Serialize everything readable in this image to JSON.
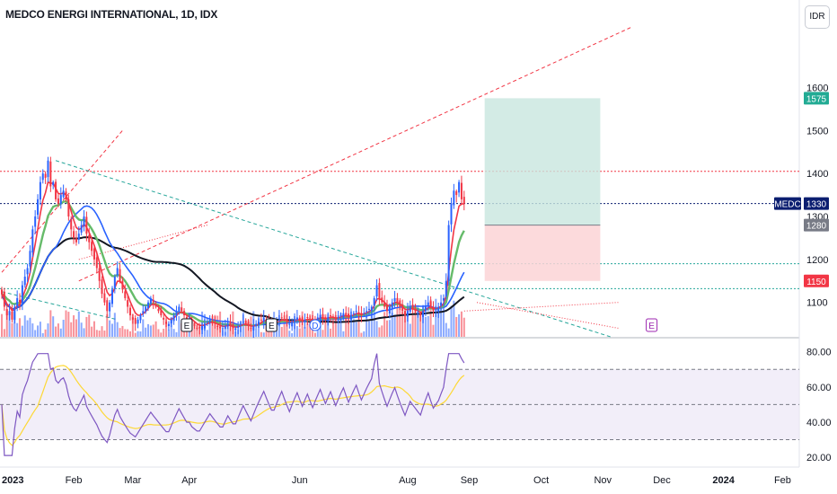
{
  "header": {
    "title": "MEDCO ENERGI INTERNATIONAL, 1D, IDX",
    "currency_button": "IDR"
  },
  "colors": {
    "up": "#2962ff",
    "down": "#f23645",
    "ema_fast": "#f23645",
    "ema_mid": "#26a69a",
    "ma_slow": "#2962ff",
    "ma_long": "#131722",
    "rsi_line": "#7e57c2",
    "rsi_ma": "#fdd835",
    "rsi_band": "#ede7f6",
    "target_zone": "#c8e6df",
    "stop_zone": "#fbd4d6",
    "tag_green": "#22ab94",
    "tag_navy": "#0b1e70",
    "tag_gray": "#787b86",
    "tag_red": "#f23645"
  },
  "chart_data": [
    {
      "type": "candlestick",
      "title": "MEDCO ENERGI INTERNATIONAL, 1D, IDX",
      "symbol": "MEDC",
      "ylim": [
        1020,
        1720
      ],
      "yticks": [
        1100,
        1200,
        1300,
        1400,
        1500,
        1600
      ],
      "xticks": [
        "2023",
        "Feb",
        "Mar",
        "Apr",
        "Jun",
        "Aug",
        "Sep",
        "Oct",
        "Nov",
        "Dec",
        "2024",
        "Feb"
      ],
      "price_tags": [
        {
          "label": "1575",
          "value": 1575,
          "color": "#22ab94"
        },
        {
          "label": "MEDC",
          "value": 1330,
          "color": "#0b1e70"
        },
        {
          "label": "1330",
          "value": 1330,
          "color": "#0b1e70"
        },
        {
          "label": "1280",
          "value": 1280,
          "color": "#787b86"
        },
        {
          "label": "1150",
          "value": 1150,
          "color": "#f23645"
        }
      ],
      "horizontal_levels": [
        {
          "value": 1405,
          "color": "#f23645",
          "style": "dotted"
        },
        {
          "value": 1330,
          "color": "#0b1e70",
          "style": "dotted"
        },
        {
          "value": 1190,
          "color": "#26a69a",
          "style": "dotted"
        },
        {
          "value": 1132,
          "color": "#26a69a",
          "style": "dotted"
        }
      ],
      "position_tool": {
        "target": 1575,
        "entry": 1280,
        "stop": 1150,
        "from_day": 188,
        "to_day": 233
      },
      "earnings_markers": [
        "E",
        "E",
        "D",
        "E"
      ],
      "series": [
        {
          "name": "price",
          "closes": [
            1120,
            1090,
            1070,
            1080,
            1060,
            1090,
            1110,
            1100,
            1140,
            1160,
            1180,
            1220,
            1270,
            1300,
            1340,
            1380,
            1400,
            1390,
            1430,
            1370,
            1380,
            1340,
            1330,
            1350,
            1360,
            1340,
            1300,
            1270,
            1250,
            1240,
            1260,
            1280,
            1300,
            1260,
            1240,
            1220,
            1200,
            1180,
            1150,
            1120,
            1100,
            1080,
            1100,
            1130,
            1160,
            1180,
            1150,
            1130,
            1110,
            1090,
            1070,
            1060,
            1050,
            1060,
            1070,
            1080,
            1090,
            1100,
            1110,
            1100,
            1090,
            1080,
            1070,
            1060,
            1050,
            1050,
            1060,
            1070,
            1080,
            1090,
            1080,
            1070,
            1060,
            1060,
            1050,
            1045,
            1040,
            1040,
            1045,
            1050,
            1055,
            1060,
            1055,
            1050,
            1045,
            1040,
            1040,
            1045,
            1050,
            1045,
            1040,
            1040,
            1045,
            1050,
            1055,
            1050,
            1045,
            1040,
            1045,
            1050,
            1055,
            1060,
            1065,
            1060,
            1055,
            1050,
            1050,
            1055,
            1060,
            1065,
            1060,
            1055,
            1050,
            1055,
            1060,
            1065,
            1060,
            1055,
            1060,
            1065,
            1060,
            1055,
            1060,
            1065,
            1070,
            1065,
            1060,
            1065,
            1070,
            1065,
            1060,
            1065,
            1070,
            1075,
            1070,
            1065,
            1070,
            1075,
            1080,
            1075,
            1070,
            1075,
            1080,
            1085,
            1090,
            1110,
            1140,
            1110,
            1100,
            1090,
            1080,
            1090,
            1100,
            1110,
            1100,
            1090,
            1080,
            1070,
            1080,
            1090,
            1085,
            1080,
            1075,
            1070,
            1080,
            1090,
            1100,
            1090,
            1080,
            1085,
            1090,
            1100,
            1110,
            1150,
            1280,
            1330,
            1360,
            1350,
            1380,
            1340,
            1330
          ]
        },
        {
          "name": "ema_fast",
          "color": "#f23645"
        },
        {
          "name": "ema_mid",
          "color": "#26a69a"
        },
        {
          "name": "ma_slow",
          "color": "#2962ff"
        },
        {
          "name": "ma_long",
          "color": "#131722"
        }
      ]
    },
    {
      "type": "line",
      "name_hint": "rsi_panel",
      "ylim": [
        18,
        86
      ],
      "yticks": [
        20,
        40,
        60,
        80
      ],
      "ytick_labels": [
        "20.00",
        "40.00",
        "60.00",
        "80.00"
      ],
      "band": [
        30,
        70
      ],
      "midline": 50,
      "series": [
        {
          "name": "rsi",
          "color": "#7e57c2"
        },
        {
          "name": "rsi_ma",
          "color": "#fdd835"
        }
      ]
    }
  ]
}
